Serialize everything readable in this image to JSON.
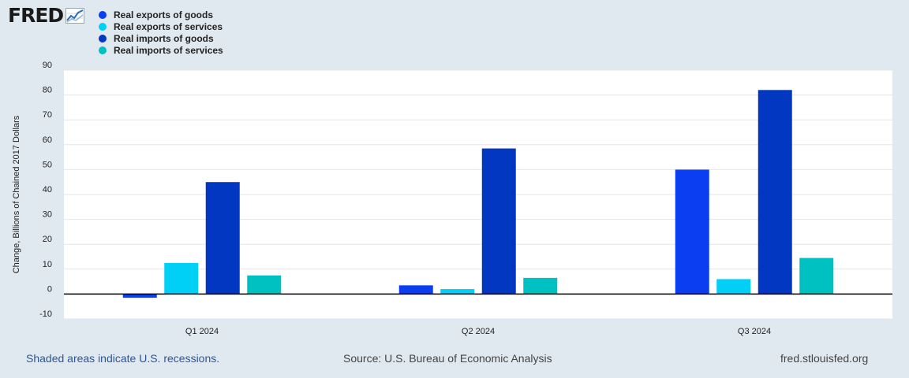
{
  "header": {
    "logo_text": "FRED",
    "logo_icon": "trend-line-chart-icon"
  },
  "chart_data": {
    "type": "bar",
    "categories": [
      "Q1 2024",
      "Q2 2024",
      "Q3 2024"
    ],
    "series": [
      {
        "name": "Real exports of goods",
        "color": "#0b3ef0",
        "values": [
          -1.5,
          3.5,
          50
        ]
      },
      {
        "name": "Real exports of services",
        "color": "#00d0f5",
        "values": [
          12.5,
          2,
          6
        ]
      },
      {
        "name": "Real imports of goods",
        "color": "#0238c1",
        "values": [
          45,
          58.5,
          82
        ]
      },
      {
        "name": "Real imports of services",
        "color": "#00c1c1",
        "values": [
          7.5,
          6.5,
          14.5
        ]
      }
    ],
    "ylabel": "Change, Billions of Chained 2017 Dollars",
    "xlabel": "",
    "ylim": [
      -10,
      90
    ],
    "yticks": [
      -10,
      0,
      10,
      20,
      30,
      40,
      50,
      60,
      70,
      80,
      90
    ],
    "grid": true,
    "legend_position": "top-left"
  },
  "footer": {
    "recession_note": "Shaded areas indicate U.S. recessions.",
    "source": "Source: U.S. Bureau of Economic Analysis",
    "site": "fred.stlouisfed.org"
  }
}
